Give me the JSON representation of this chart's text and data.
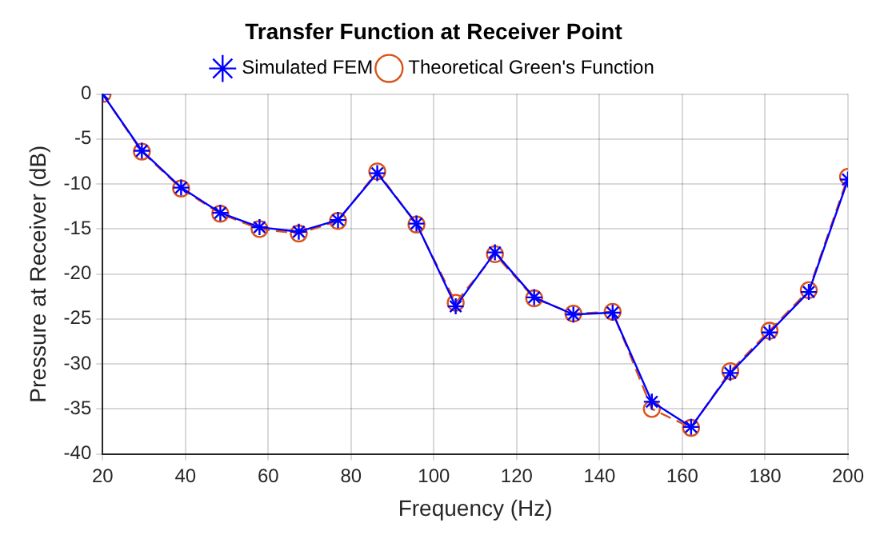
{
  "chart_data": {
    "type": "line",
    "title": "Transfer Function at Receiver Point",
    "xlabel": "Frequency (Hz)",
    "ylabel": "Pressure at Receiver (dB)",
    "x": [
      20,
      29.47,
      38.95,
      48.42,
      57.89,
      67.37,
      76.84,
      86.32,
      95.79,
      105.26,
      114.74,
      124.21,
      133.68,
      143.16,
      152.63,
      162.11,
      171.58,
      181.05,
      190.53,
      200
    ],
    "series": [
      {
        "name": "Simulated FEM",
        "color": "#0000ff",
        "marker": "cross",
        "line_style": "solid",
        "values": [
          0,
          -6.3,
          -10.4,
          -13.2,
          -14.8,
          -15.3,
          -14.0,
          -8.8,
          -14.4,
          -23.6,
          -17.6,
          -22.6,
          -24.5,
          -24.3,
          -34.2,
          -37.0,
          -31.0,
          -26.5,
          -22.0,
          -9.5
        ]
      },
      {
        "name": "Theoretical Green's Function",
        "color": "#d95319",
        "marker": "circle",
        "line_style": "dashed",
        "values": [
          0,
          -6.4,
          -10.5,
          -13.3,
          -15.0,
          -15.5,
          -14.1,
          -8.6,
          -14.5,
          -23.2,
          -17.8,
          -22.7,
          -24.4,
          -24.2,
          -35.0,
          -37.1,
          -30.8,
          -26.3,
          -21.8,
          -9.2
        ]
      }
    ],
    "xlim": [
      20,
      200
    ],
    "xticks": [
      20,
      40,
      60,
      80,
      100,
      120,
      140,
      160,
      180,
      200
    ],
    "ylim": [
      -40,
      0
    ],
    "yticks": [
      -40,
      -35,
      -30,
      -25,
      -20,
      -15,
      -10,
      -5,
      0
    ],
    "grid": true,
    "legend": "top"
  }
}
